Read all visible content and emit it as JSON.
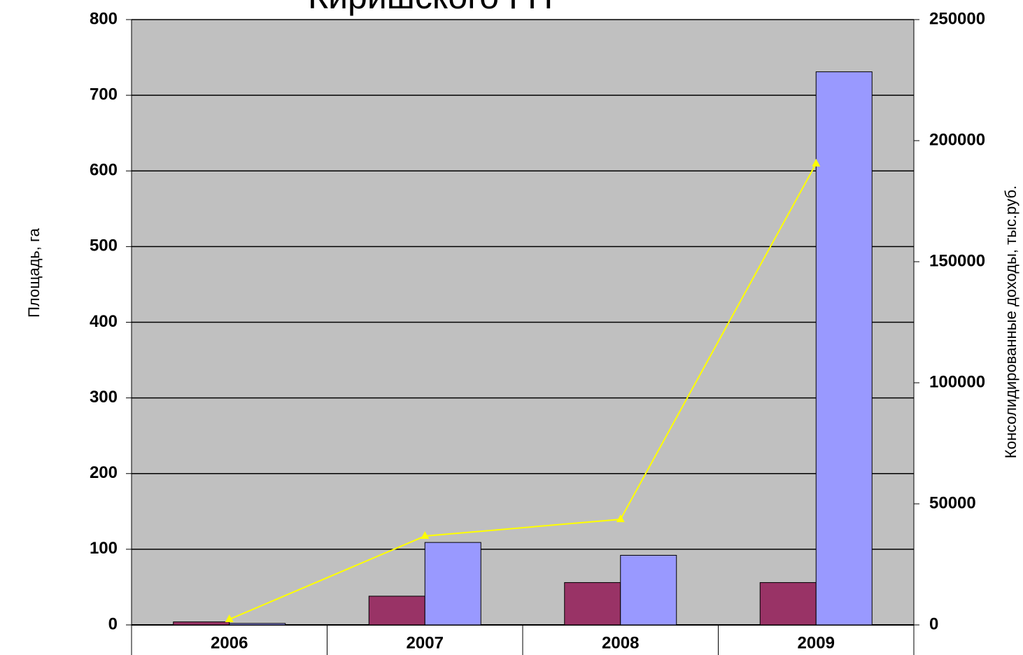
{
  "chart_data": {
    "type": "bar",
    "title": "Киришского ГП",
    "y_label": "Площадь, га",
    "y2_label": "Консолидированные доходы, тыс.руб.",
    "categories": [
      "2006",
      "2007",
      "2008",
      "2009"
    ],
    "series": [
      {
        "color": "#993366",
        "values": [
          4,
          38,
          56,
          56
        ]
      },
      {
        "color": "#9999ff",
        "values": [
          2,
          109,
          92,
          731
        ]
      },
      {
        "type": "line",
        "axis": "y2",
        "color": "#ffff00",
        "values": [
          2300,
          36700,
          43600,
          190500
        ]
      }
    ],
    "ylim": [
      0,
      800
    ],
    "yticks": [
      0,
      100,
      200,
      300,
      400,
      500,
      600,
      700,
      800
    ],
    "y2lim": [
      0,
      250000
    ],
    "y2ticks": [
      0,
      50000,
      100000,
      150000,
      200000,
      250000
    ],
    "grid": true,
    "plot_background": "#c0c0c0"
  }
}
